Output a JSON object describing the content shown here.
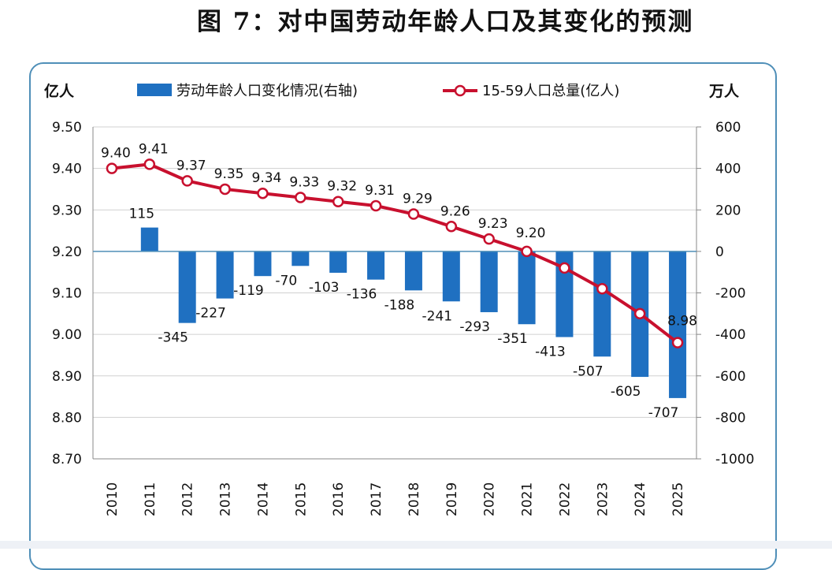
{
  "title": "图 7：对中国劳动年龄人口及其变化的预测",
  "chart_data": {
    "type": "bar+line",
    "title": "图 7：对中国劳动年龄人口及其变化的预测",
    "left_axis_unit": "亿人",
    "right_axis_unit": "万人",
    "categories": [
      "2010",
      "2011",
      "2012",
      "2013",
      "2014",
      "2015",
      "2016",
      "2017",
      "2018",
      "2019",
      "2020",
      "2021",
      "2022",
      "2023",
      "2024",
      "2025"
    ],
    "left_ylim": [
      8.7,
      9.5
    ],
    "left_ticks": [
      "9.50",
      "9.40",
      "9.30",
      "9.20",
      "9.10",
      "9.00",
      "8.90",
      "8.80",
      "8.70"
    ],
    "right_ylim": [
      -1000,
      600
    ],
    "right_ticks": [
      "600",
      "400",
      "200",
      "0",
      "-200",
      "-400",
      "-600",
      "-800",
      "-1000"
    ],
    "grid": true,
    "legend_position": "top",
    "series": [
      {
        "name": "劳动年龄人口变化情况(右轴)",
        "type": "bar",
        "axis": "right",
        "color": "#1f70c1",
        "values": [
          null,
          115,
          -345,
          -227,
          -119,
          -70,
          -103,
          -136,
          -188,
          -241,
          -293,
          -351,
          -413,
          -507,
          -605,
          -707
        ],
        "labels": [
          "",
          "115",
          "-345",
          "-227",
          "-119",
          "-70",
          "-103",
          "-136",
          "-188",
          "-241",
          "-293",
          "-351",
          "-413",
          "-507",
          "-605",
          "-707"
        ]
      },
      {
        "name": "15-59人口总量(亿人)",
        "type": "line",
        "axis": "left",
        "color": "#c8102e",
        "values": [
          9.4,
          9.41,
          9.37,
          9.35,
          9.34,
          9.33,
          9.32,
          9.31,
          9.29,
          9.26,
          9.23,
          9.2,
          9.16,
          9.11,
          9.05,
          8.98
        ],
        "labels": [
          "9.40",
          "9.41",
          "9.37",
          "9.35",
          "9.34",
          "9.33",
          "9.32",
          "9.31",
          "9.29",
          "9.26",
          "9.23",
          "9.20",
          "",
          "",
          "",
          "8.98"
        ]
      }
    ]
  }
}
